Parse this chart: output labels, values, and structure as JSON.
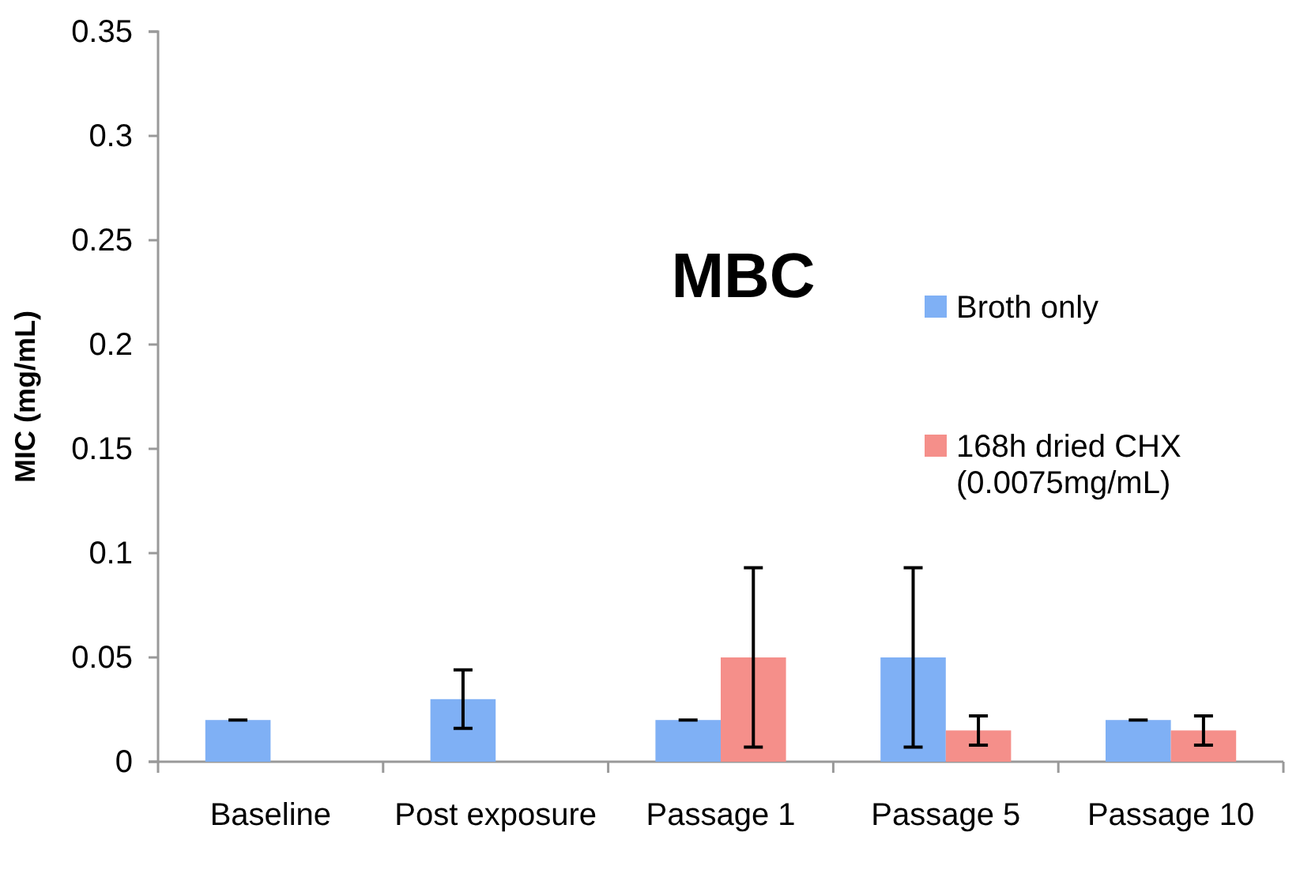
{
  "chart_data": {
    "type": "bar",
    "title": "MBC",
    "ylabel": "MIC (mg/mL)",
    "categories": [
      "Baseline",
      "Post exposure",
      "Passage 1",
      "Passage 5",
      "Passage 10"
    ],
    "series": [
      {
        "name": "Broth only",
        "color": "#7fb0f5",
        "values": [
          0.02,
          0.03,
          0.02,
          0.05,
          0.02
        ],
        "errors": [
          0,
          0.014,
          0,
          0.043,
          0
        ]
      },
      {
        "name": "168h dried CHX (0.0075mg/mL)",
        "color": "#f58f8a",
        "values": [
          null,
          null,
          0.05,
          0.015,
          0.015
        ],
        "errors": [
          null,
          null,
          0.043,
          0.007,
          0.007
        ]
      }
    ],
    "ylim": [
      0,
      0.35
    ],
    "yticks": [
      0,
      0.05,
      0.1,
      0.15,
      0.2,
      0.25,
      0.3,
      0.35
    ],
    "grid": false,
    "legend": "right"
  }
}
